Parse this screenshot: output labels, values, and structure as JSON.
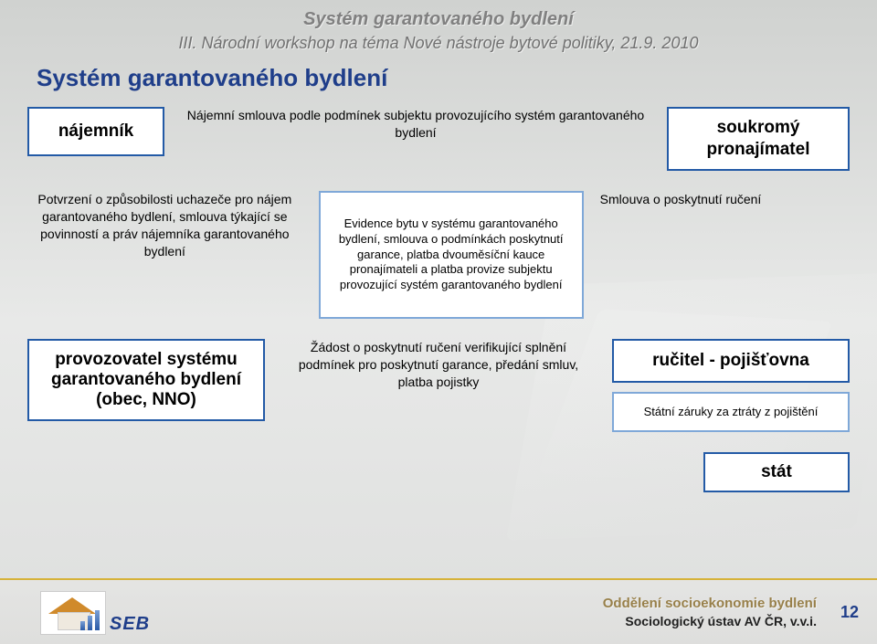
{
  "header": {
    "line1": "Systém garantovaného bydlení",
    "line2": "III. Národní workshop na téma Nové nástroje bytové politiky, 21.9. 2010"
  },
  "title": "Systém garantovaného bydlení",
  "colors": {
    "title_color": "#1f3e8a",
    "box_border": "#235aa6",
    "box_border_light": "#7fa8d8",
    "footer_rule": "#d6b23a",
    "background_top": "#d0d2d0",
    "background_bottom": "#dedfde"
  },
  "fontsizes": {
    "header_line1": 20,
    "header_line2": 18,
    "title": 26,
    "box_bold": 19,
    "box_sm": 13,
    "mid_text": 14,
    "footer_l1": 15,
    "footer_l2": 14,
    "page_num": 18
  },
  "row1": {
    "tenant": "nájemník",
    "contract_text": "Nájemní smlouva podle podmínek subjektu provozujícího systém garantovaného bydlení",
    "landlord": "soukromý pronajímatel"
  },
  "row2": {
    "left_text": "Potvrzení o způsobilosti uchazeče pro nájem garantovaného bydlení, smlouva týkající se  povinností a práv nájemníka garantovaného bydlení",
    "mid_box": "Evidence bytu v systému garantovaného bydlení, smlouva o podmínkách poskytnutí garance, platba dvouměsíční kauce pronajímateli a platba provize subjektu provozující systém garantovaného bydlení",
    "right_text": "Smlouva o poskytnutí ručení"
  },
  "row3": {
    "operator": "provozovatel systému garantovaného bydlení (obec, NNO)",
    "mid_text": "Žádost  o poskytnutí ručení verifikující splnění podmínek pro poskytnutí garance, předání smluv, platba pojistky",
    "guarantor": "ručitel - pojišťovna",
    "state_guarantee": "Státní záruky za ztráty z pojištění"
  },
  "row4": {
    "state": "stát"
  },
  "footer": {
    "logo_text": "SEB",
    "line1": "Oddělení socioekonomie bydlení",
    "line2": "Sociologický ústav AV ČR, v.v.i.",
    "page_num": "12"
  }
}
